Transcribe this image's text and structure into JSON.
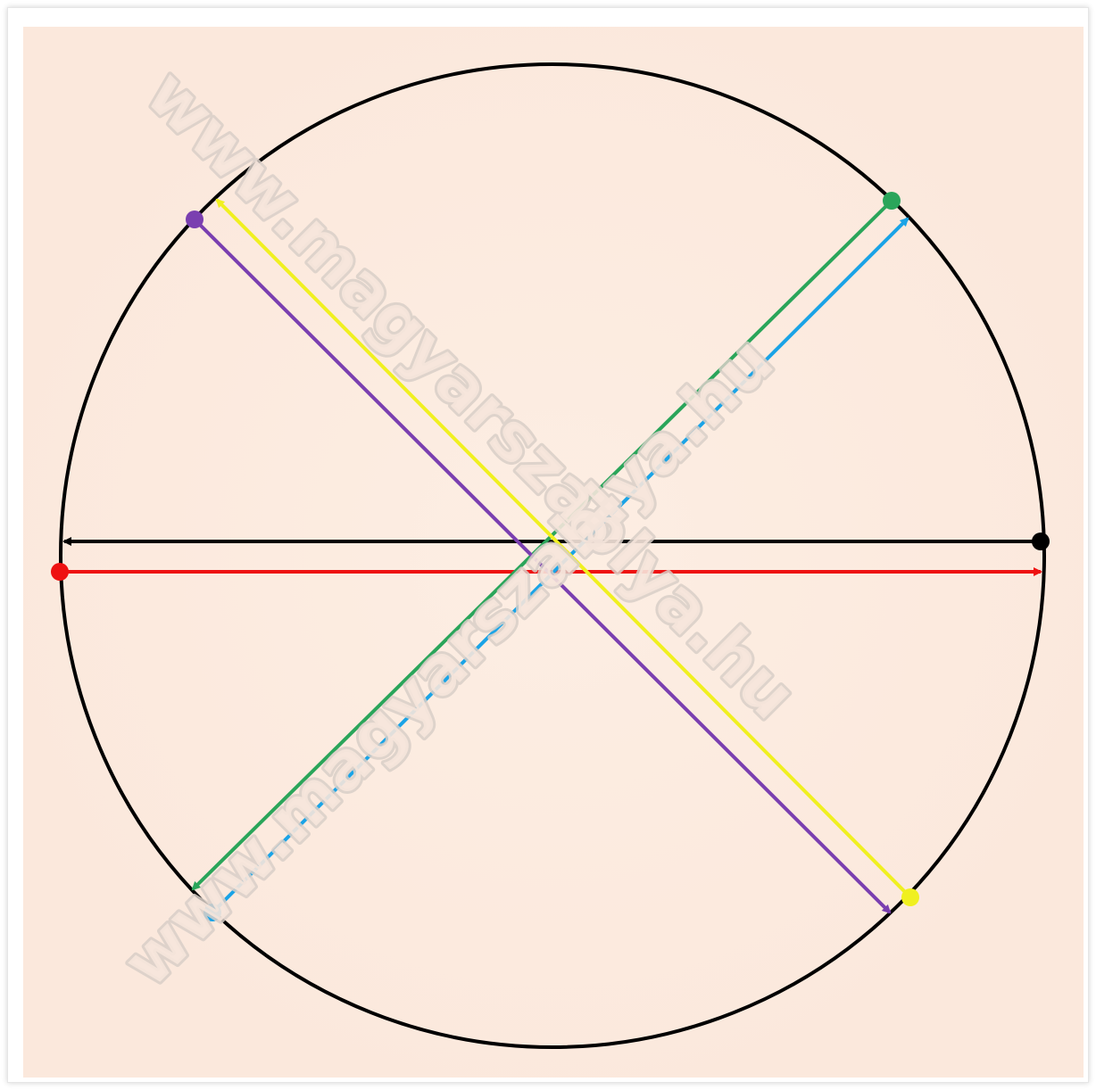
{
  "diagram": {
    "background_color": "#fcebe0",
    "circle_color": "#000000",
    "watermark": {
      "text": "www.magyarszablya.hu"
    },
    "arrows": [
      {
        "id": "black",
        "color": "#000000",
        "start_dot": true,
        "end_arrow": true
      },
      {
        "id": "red",
        "color": "#ee1111",
        "start_dot": true,
        "end_arrow": true
      },
      {
        "id": "green",
        "color": "#2aa55a",
        "start_dot": true,
        "end_arrow": true
      },
      {
        "id": "blue",
        "color": "#1aa3e6",
        "start_dot": true,
        "end_arrow": true
      },
      {
        "id": "purple",
        "color": "#7a3fb0",
        "start_dot": true,
        "end_arrow": true
      },
      {
        "id": "yellow",
        "color": "#f0f020",
        "start_dot": true,
        "end_arrow": true
      }
    ]
  }
}
